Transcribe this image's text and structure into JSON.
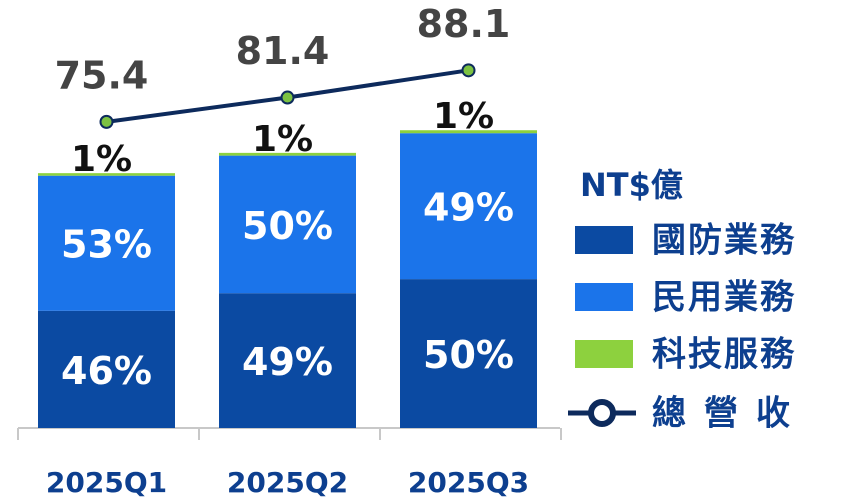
{
  "chart_data": [
    {
      "type": "bar",
      "stacked": true,
      "legend_title": "NT$億",
      "categories": [
        "2025Q1",
        "2025Q2",
        "2025Q3"
      ],
      "series": [
        {
          "name": "國防業務",
          "color": "#0b4aa2",
          "values": [
            46,
            49,
            50
          ],
          "value_labels": [
            "46%",
            "49%",
            "50%"
          ]
        },
        {
          "name": "民用業務",
          "color": "#1b74ea",
          "values": [
            53,
            50,
            49
          ],
          "value_labels": [
            "53%",
            "50%",
            "49%"
          ]
        },
        {
          "name": "科技服務",
          "color": "#8dd13e",
          "values": [
            1,
            1,
            1
          ],
          "value_labels": [
            "1%",
            "1%",
            "1%"
          ]
        }
      ]
    },
    {
      "type": "line",
      "name": "總營收",
      "color": "#0d2a5c",
      "marker_color": "#7cc242",
      "values": [
        75.4,
        81.4,
        88.1
      ]
    }
  ]
}
